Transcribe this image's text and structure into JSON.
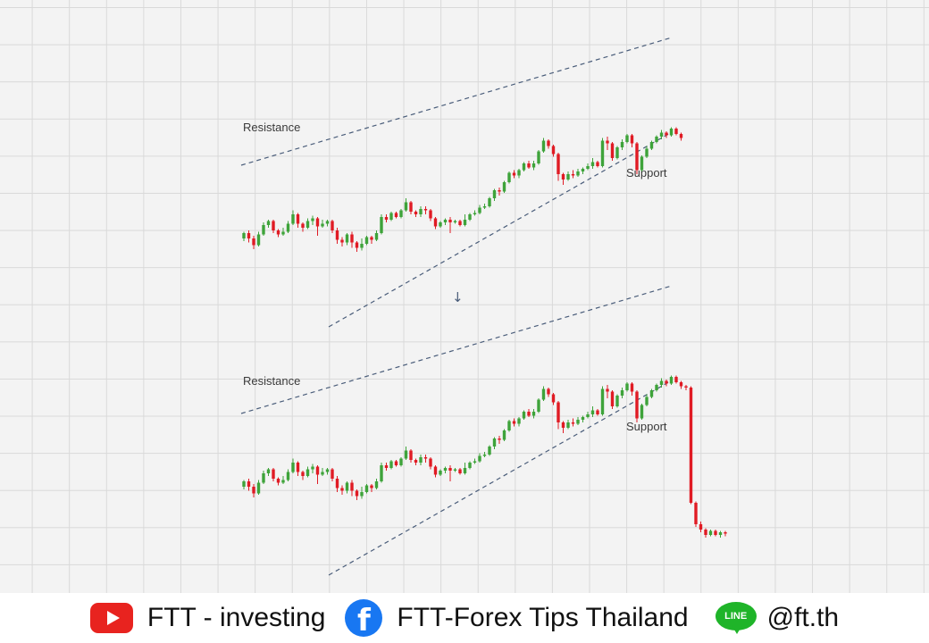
{
  "chart_data": [
    {
      "type": "candlestick",
      "annotations": {
        "resistance": "Resistance",
        "support": "Support"
      },
      "candles": [
        {
          "o": 52,
          "c": 56,
          "h": 57,
          "l": 50
        },
        {
          "o": 56,
          "c": 52,
          "h": 58,
          "l": 49
        },
        {
          "o": 52,
          "c": 47,
          "h": 54,
          "l": 44
        },
        {
          "o": 47,
          "c": 55,
          "h": 57,
          "l": 46
        },
        {
          "o": 55,
          "c": 62,
          "h": 64,
          "l": 54
        },
        {
          "o": 62,
          "c": 65,
          "h": 66,
          "l": 60
        },
        {
          "o": 65,
          "c": 58,
          "h": 66,
          "l": 56
        },
        {
          "o": 58,
          "c": 55,
          "h": 59,
          "l": 53
        },
        {
          "o": 55,
          "c": 57,
          "h": 60,
          "l": 54
        },
        {
          "o": 57,
          "c": 63,
          "h": 65,
          "l": 56
        },
        {
          "o": 63,
          "c": 70,
          "h": 73,
          "l": 62
        },
        {
          "o": 70,
          "c": 63,
          "h": 71,
          "l": 60
        },
        {
          "o": 63,
          "c": 60,
          "h": 64,
          "l": 57
        },
        {
          "o": 60,
          "c": 65,
          "h": 67,
          "l": 59
        },
        {
          "o": 65,
          "c": 67,
          "h": 69,
          "l": 62
        },
        {
          "o": 67,
          "c": 61,
          "h": 68,
          "l": 54
        },
        {
          "o": 61,
          "c": 63,
          "h": 66,
          "l": 60
        },
        {
          "o": 63,
          "c": 65,
          "h": 66,
          "l": 61
        },
        {
          "o": 65,
          "c": 58,
          "h": 66,
          "l": 56
        },
        {
          "o": 58,
          "c": 51,
          "h": 60,
          "l": 48
        },
        {
          "o": 51,
          "c": 49,
          "h": 53,
          "l": 46
        },
        {
          "o": 49,
          "c": 55,
          "h": 56,
          "l": 47
        },
        {
          "o": 55,
          "c": 49,
          "h": 57,
          "l": 45
        },
        {
          "o": 49,
          "c": 45,
          "h": 50,
          "l": 42
        },
        {
          "o": 45,
          "c": 48,
          "h": 52,
          "l": 43
        },
        {
          "o": 48,
          "c": 53,
          "h": 54,
          "l": 47
        },
        {
          "o": 53,
          "c": 51,
          "h": 54,
          "l": 48
        },
        {
          "o": 51,
          "c": 56,
          "h": 58,
          "l": 50
        },
        {
          "o": 56,
          "c": 68,
          "h": 70,
          "l": 55
        },
        {
          "o": 68,
          "c": 66,
          "h": 70,
          "l": 64
        },
        {
          "o": 66,
          "c": 71,
          "h": 72,
          "l": 65
        },
        {
          "o": 71,
          "c": 68,
          "h": 72,
          "l": 67
        },
        {
          "o": 68,
          "c": 73,
          "h": 74,
          "l": 67
        },
        {
          "o": 73,
          "c": 79,
          "h": 82,
          "l": 72
        },
        {
          "o": 79,
          "c": 72,
          "h": 80,
          "l": 70
        },
        {
          "o": 72,
          "c": 70,
          "h": 73,
          "l": 68
        },
        {
          "o": 70,
          "c": 74,
          "h": 76,
          "l": 68
        },
        {
          "o": 74,
          "c": 73,
          "h": 76,
          "l": 70
        },
        {
          "o": 73,
          "c": 67,
          "h": 74,
          "l": 65
        },
        {
          "o": 67,
          "c": 61,
          "h": 68,
          "l": 59
        },
        {
          "o": 61,
          "c": 64,
          "h": 65,
          "l": 60
        },
        {
          "o": 64,
          "c": 66,
          "h": 67,
          "l": 62
        },
        {
          "o": 66,
          "c": 64,
          "h": 68,
          "l": 56
        },
        {
          "o": 64,
          "c": 65,
          "h": 66,
          "l": 63
        },
        {
          "o": 65,
          "c": 62,
          "h": 66,
          "l": 61
        },
        {
          "o": 62,
          "c": 66,
          "h": 70,
          "l": 61
        },
        {
          "o": 66,
          "c": 70,
          "h": 71,
          "l": 65
        },
        {
          "o": 70,
          "c": 71,
          "h": 73,
          "l": 69
        },
        {
          "o": 71,
          "c": 75,
          "h": 77,
          "l": 70
        },
        {
          "o": 75,
          "c": 76,
          "h": 78,
          "l": 74
        },
        {
          "o": 76,
          "c": 82,
          "h": 83,
          "l": 75
        },
        {
          "o": 82,
          "c": 88,
          "h": 89,
          "l": 80
        },
        {
          "o": 88,
          "c": 87,
          "h": 90,
          "l": 84
        },
        {
          "o": 87,
          "c": 94,
          "h": 95,
          "l": 86
        },
        {
          "o": 94,
          "c": 101,
          "h": 102,
          "l": 93
        },
        {
          "o": 101,
          "c": 99,
          "h": 103,
          "l": 97
        },
        {
          "o": 99,
          "c": 103,
          "h": 104,
          "l": 97
        },
        {
          "o": 103,
          "c": 108,
          "h": 109,
          "l": 102
        },
        {
          "o": 108,
          "c": 105,
          "h": 110,
          "l": 104
        },
        {
          "o": 105,
          "c": 108,
          "h": 110,
          "l": 103
        },
        {
          "o": 108,
          "c": 117,
          "h": 118,
          "l": 107
        },
        {
          "o": 117,
          "c": 125,
          "h": 127,
          "l": 116
        },
        {
          "o": 125,
          "c": 121,
          "h": 126,
          "l": 119
        },
        {
          "o": 121,
          "c": 115,
          "h": 122,
          "l": 113
        },
        {
          "o": 115,
          "c": 100,
          "h": 116,
          "l": 95
        },
        {
          "o": 100,
          "c": 96,
          "h": 101,
          "l": 92
        },
        {
          "o": 96,
          "c": 100,
          "h": 102,
          "l": 95
        },
        {
          "o": 100,
          "c": 99,
          "h": 103,
          "l": 97
        },
        {
          "o": 99,
          "c": 102,
          "h": 104,
          "l": 98
        },
        {
          "o": 102,
          "c": 104,
          "h": 105,
          "l": 100
        },
        {
          "o": 104,
          "c": 106,
          "h": 108,
          "l": 103
        },
        {
          "o": 106,
          "c": 109,
          "h": 112,
          "l": 104
        },
        {
          "o": 109,
          "c": 106,
          "h": 110,
          "l": 105
        },
        {
          "o": 106,
          "c": 125,
          "h": 127,
          "l": 105
        },
        {
          "o": 125,
          "c": 123,
          "h": 128,
          "l": 118
        },
        {
          "o": 123,
          "c": 112,
          "h": 124,
          "l": 110
        },
        {
          "o": 112,
          "c": 120,
          "h": 121,
          "l": 111
        },
        {
          "o": 120,
          "c": 124,
          "h": 126,
          "l": 118
        },
        {
          "o": 124,
          "c": 129,
          "h": 130,
          "l": 123
        },
        {
          "o": 129,
          "c": 123,
          "h": 130,
          "l": 120
        },
        {
          "o": 123,
          "c": 103,
          "h": 124,
          "l": 100
        },
        {
          "o": 103,
          "c": 113,
          "h": 114,
          "l": 102
        },
        {
          "o": 113,
          "c": 119,
          "h": 121,
          "l": 112
        },
        {
          "o": 119,
          "c": 124,
          "h": 125,
          "l": 118
        },
        {
          "o": 124,
          "c": 128,
          "h": 129,
          "l": 123
        },
        {
          "o": 128,
          "c": 131,
          "h": 133,
          "l": 126
        },
        {
          "o": 131,
          "c": 129,
          "h": 132,
          "l": 127
        },
        {
          "o": 129,
          "c": 134,
          "h": 135,
          "l": 128
        },
        {
          "o": 134,
          "c": 130,
          "h": 135,
          "l": 129
        },
        {
          "o": 130,
          "c": 127,
          "h": 131,
          "l": 125
        }
      ]
    },
    {
      "type": "candlestick",
      "annotations": {
        "resistance": "Resistance",
        "support": "Support"
      },
      "candles_note": "Same candles as the first chart followed by a sharp breakdown below support",
      "extra_candles": [
        {
          "o": 127,
          "c": 126,
          "h": 128,
          "l": 124
        },
        {
          "o": 126,
          "c": 40,
          "h": 127,
          "l": 39
        },
        {
          "o": 40,
          "c": 24,
          "h": 41,
          "l": 22
        },
        {
          "o": 24,
          "c": 20,
          "h": 26,
          "l": 18
        },
        {
          "o": 20,
          "c": 16,
          "h": 21,
          "l": 14
        },
        {
          "o": 16,
          "c": 19,
          "h": 20,
          "l": 15
        },
        {
          "o": 19,
          "c": 16,
          "h": 20,
          "l": 15
        },
        {
          "o": 16,
          "c": 18,
          "h": 19,
          "l": 14
        },
        {
          "o": 18,
          "c": 17,
          "h": 19,
          "l": 15
        }
      ]
    }
  ],
  "down_arrow": "↓",
  "colors": {
    "up": "#3ea33a",
    "down": "#e01b24",
    "trendline": "#4a5d7a"
  },
  "footer": {
    "youtube_text": "FTT - investing",
    "facebook_text": "FTT-Forex Tips Thailand",
    "line_text": "@ft.th",
    "line_icon_text": "LINE",
    "facebook_icon_text": "f"
  }
}
